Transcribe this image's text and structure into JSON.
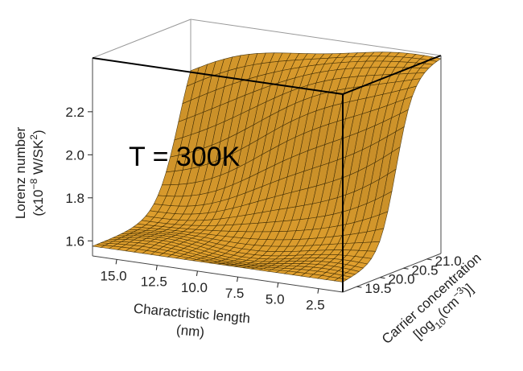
{
  "chart_data": {
    "type": "surface",
    "annotation": "T = 300K",
    "x_axis": {
      "label_lines": [
        "Charactristic length",
        "(nm)"
      ],
      "ticks": [
        "15.0",
        "12.5",
        "10.0",
        "7.5",
        "5.0",
        "2.5"
      ],
      "range": [
        16.5,
        1.0
      ]
    },
    "y_axis": {
      "label_main": "Carrier concentration",
      "label_unit": {
        "open": "[log",
        "sub": "10",
        "mid": "(cm",
        "sup": "−3",
        "close": ")]"
      },
      "ticks": [
        "19.5",
        "20.0",
        "20.5",
        "21.0"
      ],
      "range": [
        19.2,
        21.3
      ]
    },
    "z_axis": {
      "label_line1": "Lorenz number",
      "label_line2": {
        "pre": "(x10",
        "sup1": "−8",
        "mid": " W/SK",
        "sup2": "2",
        "post": ")"
      },
      "ticks": [
        "1.6",
        "1.8",
        "2.0",
        "2.2"
      ],
      "range": [
        1.53,
        2.45
      ]
    },
    "surface_color": "#e2a12e",
    "mesh_color": "#3a2800",
    "grid_resolution": [
      30,
      24
    ],
    "surface_model": "L increases from ~1.57 at low carrier concentration to ~2.44 at high carrier concentration; steeper rise for short characteristic length"
  }
}
